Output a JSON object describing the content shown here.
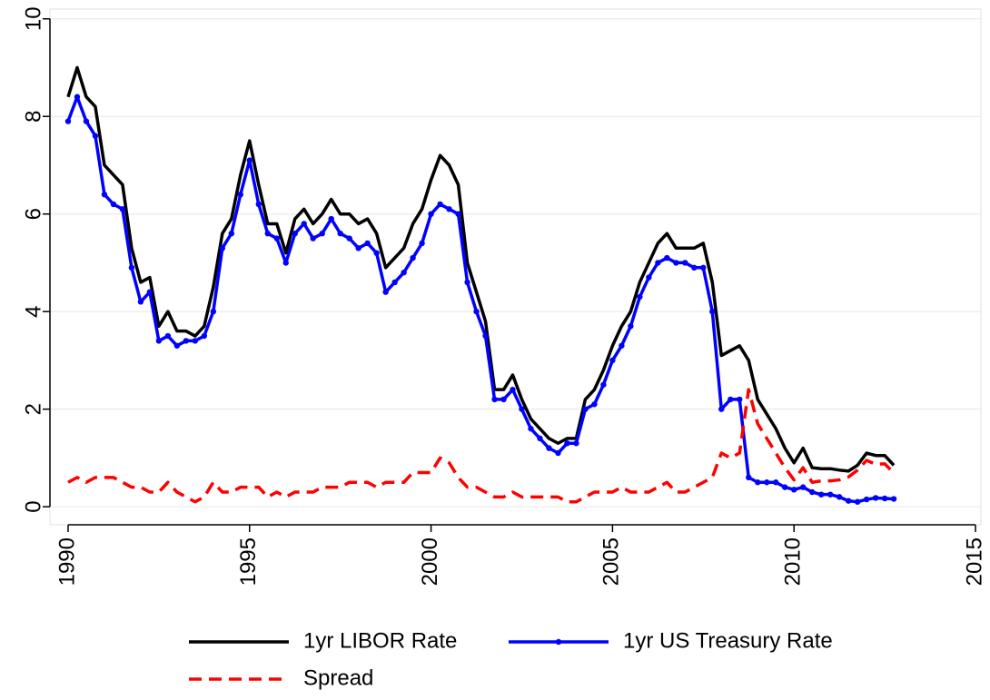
{
  "chart_data": {
    "type": "line",
    "x": [
      1990,
      1990.25,
      1990.5,
      1990.75,
      1991,
      1991.25,
      1991.5,
      1991.75,
      1992,
      1992.25,
      1992.5,
      1992.75,
      1993,
      1993.25,
      1993.5,
      1993.75,
      1994,
      1994.25,
      1994.5,
      1994.75,
      1995,
      1995.25,
      1995.5,
      1995.75,
      1996,
      1996.25,
      1996.5,
      1996.75,
      1997,
      1997.25,
      1997.5,
      1997.75,
      1998,
      1998.25,
      1998.5,
      1998.75,
      1999,
      1999.25,
      1999.5,
      1999.75,
      2000,
      2000.25,
      2000.5,
      2000.75,
      2001,
      2001.25,
      2001.5,
      2001.75,
      2002,
      2002.25,
      2002.5,
      2002.75,
      2003,
      2003.25,
      2003.5,
      2003.75,
      2004,
      2004.25,
      2004.5,
      2004.75,
      2005,
      2005.25,
      2005.5,
      2005.75,
      2006,
      2006.25,
      2006.5,
      2006.75,
      2007,
      2007.25,
      2007.5,
      2007.75,
      2008,
      2008.25,
      2008.5,
      2008.75,
      2009,
      2009.25,
      2009.5,
      2009.75,
      2010,
      2010.25,
      2010.5,
      2010.75,
      2011,
      2011.25,
      2011.5,
      2011.75,
      2012,
      2012.25,
      2012.5,
      2012.75
    ],
    "series": [
      {
        "name": "1yr LIBOR Rate",
        "color": "#000000",
        "linestyle": "solid",
        "markers": false,
        "values": [
          8.4,
          9.0,
          8.4,
          8.2,
          7.0,
          6.8,
          6.6,
          5.3,
          4.6,
          4.7,
          3.7,
          4.0,
          3.6,
          3.6,
          3.5,
          3.7,
          4.5,
          5.6,
          5.9,
          6.8,
          7.5,
          6.6,
          5.8,
          5.8,
          5.2,
          5.9,
          6.1,
          5.8,
          6.0,
          6.3,
          6.0,
          6.0,
          5.8,
          5.9,
          5.6,
          4.9,
          5.1,
          5.3,
          5.8,
          6.1,
          6.7,
          7.2,
          7.0,
          6.6,
          5.0,
          4.4,
          3.8,
          2.4,
          2.4,
          2.7,
          2.2,
          1.8,
          1.6,
          1.4,
          1.3,
          1.4,
          1.4,
          2.2,
          2.4,
          2.8,
          3.3,
          3.7,
          4.0,
          4.6,
          5.0,
          5.4,
          5.6,
          5.3,
          5.3,
          5.3,
          5.4,
          4.6,
          3.1,
          3.2,
          3.3,
          3.0,
          2.2,
          1.9,
          1.6,
          1.2,
          0.9,
          1.2,
          0.8,
          0.78,
          0.78,
          0.75,
          0.73,
          0.85,
          1.1,
          1.05,
          1.05,
          0.85
        ]
      },
      {
        "name": "1yr US Treasury Rate",
        "color": "#0000ff",
        "linestyle": "solid",
        "markers": true,
        "values": [
          7.9,
          8.4,
          7.9,
          7.6,
          6.4,
          6.2,
          6.1,
          4.9,
          4.2,
          4.4,
          3.4,
          3.5,
          3.3,
          3.4,
          3.4,
          3.5,
          4.0,
          5.3,
          5.6,
          6.4,
          7.1,
          6.2,
          5.6,
          5.5,
          5.0,
          5.6,
          5.8,
          5.5,
          5.6,
          5.9,
          5.6,
          5.5,
          5.3,
          5.4,
          5.2,
          4.4,
          4.6,
          4.8,
          5.1,
          5.4,
          6.0,
          6.2,
          6.1,
          6.0,
          4.6,
          4.0,
          3.5,
          2.2,
          2.2,
          2.4,
          2.0,
          1.6,
          1.4,
          1.2,
          1.1,
          1.3,
          1.3,
          2.0,
          2.1,
          2.5,
          3.0,
          3.3,
          3.7,
          4.3,
          4.7,
          5.0,
          5.1,
          5.0,
          5.0,
          4.9,
          4.9,
          4.0,
          2.0,
          2.2,
          2.2,
          0.6,
          0.5,
          0.5,
          0.5,
          0.4,
          0.35,
          0.4,
          0.3,
          0.25,
          0.25,
          0.2,
          0.12,
          0.1,
          0.15,
          0.18,
          0.17,
          0.16
        ]
      },
      {
        "name": "Spread",
        "color": "#ff0000",
        "linestyle": "dashed",
        "markers": false,
        "values": [
          0.5,
          0.6,
          0.5,
          0.6,
          0.6,
          0.6,
          0.5,
          0.4,
          0.4,
          0.3,
          0.3,
          0.5,
          0.3,
          0.2,
          0.1,
          0.2,
          0.5,
          0.3,
          0.3,
          0.4,
          0.4,
          0.4,
          0.2,
          0.3,
          0.2,
          0.3,
          0.3,
          0.3,
          0.4,
          0.4,
          0.4,
          0.5,
          0.5,
          0.5,
          0.4,
          0.5,
          0.5,
          0.5,
          0.7,
          0.7,
          0.7,
          1.0,
          0.9,
          0.6,
          0.4,
          0.4,
          0.3,
          0.2,
          0.2,
          0.3,
          0.2,
          0.2,
          0.2,
          0.2,
          0.2,
          0.1,
          0.1,
          0.2,
          0.3,
          0.3,
          0.3,
          0.4,
          0.3,
          0.3,
          0.3,
          0.4,
          0.5,
          0.3,
          0.3,
          0.4,
          0.5,
          0.6,
          1.1,
          1.0,
          1.1,
          2.4,
          1.7,
          1.4,
          1.1,
          0.8,
          0.55,
          0.8,
          0.5,
          0.53,
          0.53,
          0.55,
          0.61,
          0.75,
          0.95,
          0.87,
          0.88,
          0.69
        ]
      }
    ],
    "xlim": [
      1989.5,
      2015.15
    ],
    "xticks": [
      1990,
      1995,
      2000,
      2005,
      2010,
      2015
    ],
    "ylim": [
      -0.37,
      10.2
    ],
    "yticks": [
      0,
      2,
      4,
      6,
      8,
      10
    ],
    "grid": true,
    "legend": "bottom"
  }
}
